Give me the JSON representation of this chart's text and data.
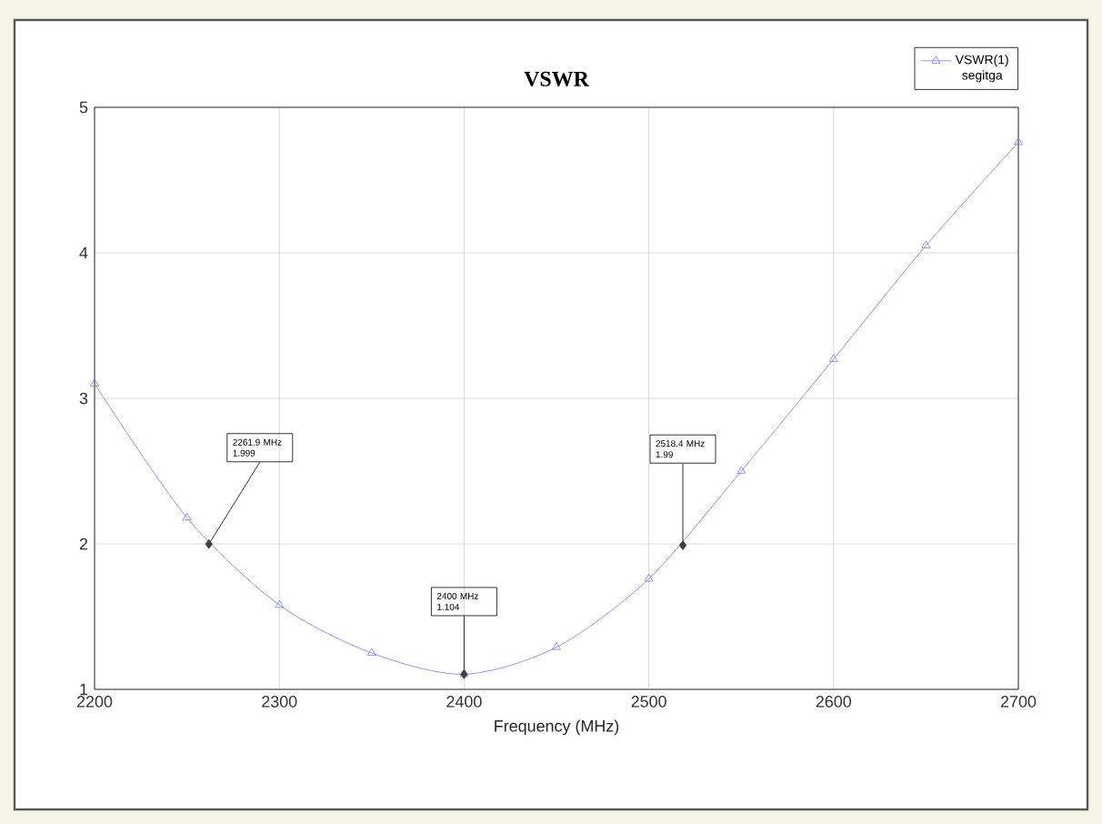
{
  "chart_data": {
    "type": "line",
    "title": "VSWR",
    "xlabel": "Frequency (MHz)",
    "x": [
      2200,
      2250,
      2300,
      2350,
      2400,
      2450,
      2500,
      2550,
      2600,
      2650,
      2700
    ],
    "series": [
      {
        "name": "VSWR(1)",
        "color": "#7b7bf0",
        "values": [
          3.1,
          2.18,
          1.58,
          1.25,
          1.104,
          1.29,
          1.76,
          2.5,
          3.27,
          4.05,
          4.76
        ]
      }
    ],
    "legend_title": "segitga",
    "xlim": [
      2200,
      2700
    ],
    "ylim": [
      1,
      5
    ],
    "xticks": [
      2200,
      2300,
      2400,
      2500,
      2600,
      2700
    ],
    "yticks": [
      1,
      2,
      3,
      4,
      5
    ],
    "grid": true,
    "legend": "top right",
    "marker": "triangle",
    "line_style": "solid",
    "annotations": [
      {
        "text": "2261.9 MHz 1.999",
        "x": 2261.9,
        "y": 1.999
      },
      {
        "text": "2400 MHz 1.104",
        "x": 2400,
        "y": 1.104
      },
      {
        "text": "2518.4 MHz 1.99",
        "x": 2518.4,
        "y": 1.99
      }
    ]
  }
}
